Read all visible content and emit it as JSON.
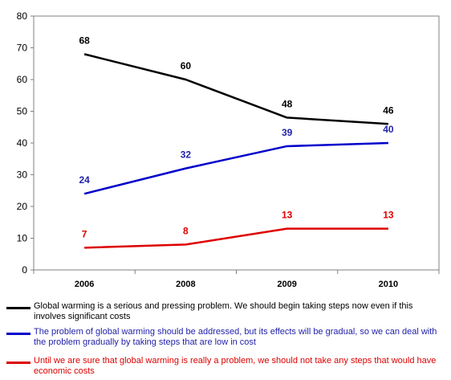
{
  "chart_data": {
    "type": "line",
    "categories": [
      "2006",
      "2008",
      "2009",
      "2010"
    ],
    "ylim": [
      0,
      80
    ],
    "yticks": [
      0,
      10,
      20,
      30,
      40,
      50,
      60,
      70,
      80
    ],
    "grid": false,
    "legend_position": "bottom",
    "series": [
      {
        "name": "Global warming is a serious and pressing problem. We should begin taking steps now even if this involves significant costs",
        "values": [
          68,
          60,
          48,
          46
        ],
        "color": "#000000",
        "label_color": "#000000"
      },
      {
        "name": "The problem of global warming should be addressed, but its effects will be gradual, so we can deal with the problem gradually by taking steps that are low in cost",
        "values": [
          24,
          32,
          39,
          40
        ],
        "color": "#0000CC",
        "label_color": "#2222AA"
      },
      {
        "name": "Until we are sure that global warming is really a problem, we should not take any steps that would have economic costs",
        "values": [
          7,
          8,
          13,
          13
        ],
        "color": "#DD0000",
        "label_color": "#DD0000"
      }
    ]
  }
}
